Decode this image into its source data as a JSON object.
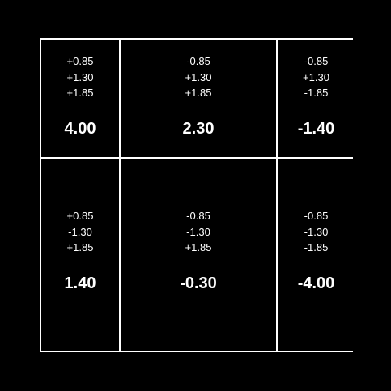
{
  "cells": [
    {
      "terms": [
        "+0.85",
        "+1.30",
        "+1.85"
      ],
      "total": "4.00"
    },
    {
      "terms": [
        "-0.85",
        "+1.30",
        "+1.85"
      ],
      "total": "2.30"
    },
    {
      "terms": [
        "-0.85",
        "+1.30",
        "-1.85"
      ],
      "total": "-1.40"
    },
    {
      "terms": [
        "+0.85",
        "-1.30",
        "+1.85"
      ],
      "total": "1.40"
    },
    {
      "terms": [
        "-0.85",
        "-1.30",
        "+1.85"
      ],
      "total": "-0.30"
    },
    {
      "terms": [
        "-0.85",
        "-1.30",
        "-1.85"
      ],
      "total": "-4.00"
    }
  ]
}
